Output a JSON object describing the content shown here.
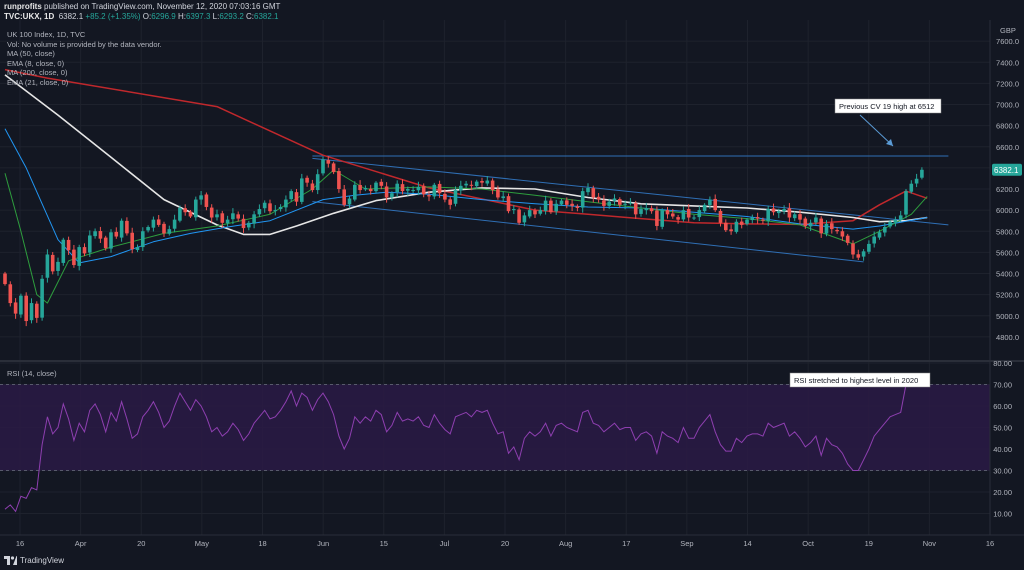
{
  "header": {
    "publisher": "runprofits",
    "published_text": " published on TradingView.com, November 12, 2020 07:03:16 GMT",
    "symbol": "TVC:UKX, 1D",
    "last": "6382.1",
    "change": "+85.2 (+1.35%)",
    "open_label": "O:",
    "open": "6296.9",
    "high_label": "H:",
    "high": "6397.3",
    "low_label": "L:",
    "low": "6293.2",
    "close_label": "C:",
    "close": "6382.1"
  },
  "indicators": {
    "title": "UK 100 Index, 1D, TVC",
    "vol": "Vol: No volume is provided by the data vendor.",
    "ma50": "MA (50, close)",
    "ema8": "EMA (8, close, 0)",
    "ma200": "MA (200, close, 0)",
    "ema21": "EMA (21, close, 0)"
  },
  "rsi_label": "RSI (14, close)",
  "currency": "GBP",
  "price_tag": "6382.1",
  "footer_brand": "TradingView",
  "annotations": {
    "cv19": "Previous CV 19 high at 6512",
    "rsi": "RSI stretched to highest level in 2020"
  },
  "colors": {
    "background": "#131722",
    "bull": "#26a69a",
    "bear": "#ef5350",
    "ma200": "#c0282c",
    "ma50": "#e6e6e6",
    "ema21": "#2196f3",
    "ema8": "#2e9e3e",
    "channel": "#2f6fb5",
    "rsi": "#8e3fb0",
    "rsi_band": "#2a1a45"
  },
  "chart_data": {
    "type": "candlestick",
    "price_axis": {
      "ticks": [
        4800,
        5000,
        5200,
        5400,
        5600,
        5800,
        6000,
        6200,
        6400,
        6600,
        6800,
        7000,
        7200,
        7400,
        7600
      ],
      "range": [
        4600,
        7800
      ]
    },
    "rsi_axis": {
      "ticks": [
        10,
        20,
        30,
        40,
        50,
        60,
        70,
        80
      ],
      "range": [
        0,
        80
      ],
      "overbought": 70,
      "oversold": 30
    },
    "x_tick_labels": [
      "16",
      "Apr",
      "20",
      "May",
      "18",
      "Jun",
      "15",
      "Jul",
      "20",
      "Aug",
      "17",
      "Sep",
      "14",
      "Oct",
      "19",
      "Nov",
      "16"
    ],
    "closes": [
      5300,
      5120,
      5020,
      5190,
      4950,
      5120,
      4980,
      5350,
      5580,
      5420,
      5510,
      5720,
      5620,
      5480,
      5650,
      5590,
      5760,
      5800,
      5730,
      5640,
      5790,
      5750,
      5900,
      5780,
      5630,
      5650,
      5800,
      5840,
      5910,
      5860,
      5780,
      5820,
      5910,
      6020,
      5980,
      5940,
      6100,
      6140,
      6030,
      5930,
      5960,
      5880,
      5910,
      5970,
      5920,
      5830,
      5880,
      5960,
      6010,
      6070,
      5990,
      6000,
      6030,
      6100,
      6180,
      6080,
      6300,
      6260,
      6190,
      6340,
      6480,
      6440,
      6360,
      6200,
      6050,
      6110,
      6240,
      6190,
      6210,
      6180,
      6260,
      6230,
      6120,
      6160,
      6250,
      6180,
      6200,
      6190,
      6220,
      6150,
      6130,
      6240,
      6160,
      6100,
      6050,
      6190,
      6230,
      6250,
      6230,
      6270,
      6260,
      6280,
      6190,
      6120,
      6130,
      5990,
      6010,
      5880,
      5950,
      6000,
      5960,
      6000,
      6090,
      5980,
      6060,
      6090,
      6050,
      6040,
      6020,
      6180,
      6210,
      6120,
      6100,
      6040,
      6080,
      6110,
      6050,
      6060,
      6070,
      5960,
      6010,
      6020,
      5990,
      5850,
      6000,
      5960,
      5940,
      5910,
      6000,
      5930,
      5930,
      6000,
      6050,
      6100,
      6000,
      5880,
      5810,
      5800,
      5890,
      5860,
      5910,
      5930,
      5920,
      5900,
      6010,
      5980,
      5990,
      6010,
      5930,
      5960,
      5910,
      5850,
      5880,
      5930,
      5780,
      5870,
      5820,
      5800,
      5750,
      5690,
      5580,
      5550,
      5610,
      5680,
      5750,
      5790,
      5840,
      5890,
      5910,
      5950,
      6180,
      6250,
      6297,
      6382
    ],
    "rsi_values": [
      12,
      14,
      11,
      18,
      17,
      22,
      21,
      42,
      55,
      47,
      50,
      61,
      54,
      44,
      52,
      48,
      58,
      61,
      56,
      48,
      57,
      53,
      62,
      54,
      45,
      47,
      55,
      58,
      62,
      57,
      50,
      53,
      60,
      66,
      62,
      58,
      63,
      60,
      55,
      48,
      50,
      46,
      48,
      52,
      49,
      44,
      47,
      52,
      55,
      58,
      54,
      55,
      58,
      62,
      67,
      60,
      66,
      64,
      58,
      63,
      66,
      62,
      56,
      46,
      40,
      45,
      55,
      52,
      55,
      53,
      58,
      56,
      48,
      51,
      57,
      53,
      54,
      53,
      55,
      51,
      50,
      56,
      52,
      49,
      47,
      55,
      56,
      57,
      55,
      58,
      57,
      58,
      52,
      47,
      48,
      38,
      41,
      35,
      45,
      48,
      46,
      48,
      52,
      46,
      51,
      52,
      50,
      49,
      48,
      57,
      58,
      52,
      51,
      48,
      50,
      52,
      49,
      50,
      50,
      44,
      47,
      48,
      46,
      38,
      48,
      46,
      45,
      43,
      50,
      45,
      45,
      50,
      53,
      56,
      48,
      42,
      39,
      39,
      45,
      43,
      46,
      47,
      47,
      46,
      52,
      50,
      51,
      52,
      46,
      48,
      45,
      41,
      43,
      46,
      37,
      45,
      42,
      41,
      38,
      33,
      30,
      30,
      35,
      40,
      46,
      49,
      52,
      55,
      56,
      57,
      70,
      72,
      74,
      75
    ],
    "series": [
      {
        "name": "MA (200, close, 0)",
        "color": "#c0282c",
        "values": [
          7330,
          7250,
          6980,
          6520,
          6210,
          6000,
          5960,
          5920,
          5880,
          5870,
          5865,
          5900,
          6050,
          6180,
          6112
        ],
        "x_index": [
          0,
          8,
          40,
          60,
          80,
          100,
          110,
          120,
          130,
          140,
          150,
          160,
          165,
          170,
          174
        ]
      },
      {
        "name": "MA (50, close)",
        "color": "#e6e6e6",
        "values": [
          7280,
          6900,
          6500,
          6100,
          5860,
          5770,
          5770,
          5850,
          5970,
          6090,
          6170,
          6210,
          6200,
          6120,
          6060,
          6040,
          6020,
          5980,
          5930,
          5890,
          5900,
          5930
        ],
        "x_index": [
          0,
          10,
          20,
          30,
          40,
          45,
          50,
          55,
          62,
          70,
          80,
          90,
          100,
          110,
          120,
          130,
          140,
          150,
          160,
          165,
          170,
          174
        ]
      },
      {
        "name": "EMA (21, close, 0)",
        "color": "#2196f3",
        "values": [
          6770,
          6400,
          5720,
          5500,
          5560,
          5700,
          5780,
          5840,
          5900,
          6100,
          6140,
          6170,
          6150,
          6100,
          6060,
          6030,
          6020,
          5980,
          5940,
          5870,
          5820,
          5850,
          5930
        ],
        "x_index": [
          0,
          4,
          10,
          14,
          20,
          28,
          35,
          42,
          50,
          60,
          66,
          72,
          80,
          90,
          100,
          110,
          120,
          130,
          140,
          150,
          160,
          165,
          174
        ]
      },
      {
        "name": "EMA (8, close, 0)",
        "color": "#2e9e3e",
        "values": [
          6350,
          5800,
          5200,
          5120,
          5520,
          5650,
          5780,
          5850,
          5960,
          6200,
          6380,
          6200,
          6220,
          6200,
          6140,
          6080,
          6020,
          5960,
          5920,
          5860,
          5680,
          5800,
          5960,
          6130
        ],
        "x_index": [
          0,
          3,
          6,
          8,
          12,
          20,
          30,
          40,
          50,
          58,
          62,
          68,
          80,
          90,
          100,
          110,
          120,
          130,
          140,
          150,
          160,
          165,
          171,
          174
        ]
      }
    ],
    "trendlines": [
      {
        "name": "channel-top",
        "from": [
          58,
          6490
        ],
        "to": [
          178,
          5860
        ]
      },
      {
        "name": "channel-bottom",
        "from": [
          58,
          6080
        ],
        "to": [
          162,
          5510
        ]
      },
      {
        "name": "cv19-high",
        "from": [
          58,
          6512
        ],
        "to": [
          178,
          6512
        ]
      }
    ]
  }
}
